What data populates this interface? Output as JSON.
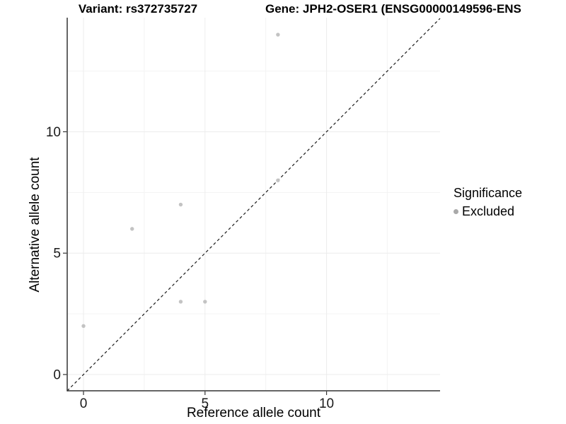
{
  "titles": {
    "variant": "Variant: rs372735727",
    "gene": "Gene: JPH2-OSER1 (ENSG00000149596-ENS"
  },
  "chart_data": {
    "type": "scatter",
    "title_left": "Variant: rs372735727",
    "title_right": "Gene: JPH2-OSER1 (ENSG00000149596-ENS",
    "xlabel": "Reference allele count",
    "ylabel": "Alternative allele count",
    "xlim": [
      -0.67,
      14.67
    ],
    "ylim": [
      -0.67,
      14.7
    ],
    "x_major_ticks": [
      0,
      5,
      10
    ],
    "y_major_ticks": [
      0,
      5,
      10
    ],
    "x_minor_ticks": [
      2.5,
      7.5,
      12.5
    ],
    "y_minor_ticks": [
      2.5,
      7.5,
      12.5
    ],
    "grid": true,
    "identity_line": {
      "type": "abline",
      "slope": 1,
      "intercept": 0,
      "style": "dashed"
    },
    "series": [
      {
        "name": "Excluded",
        "points": [
          {
            "x": 0,
            "y": 2
          },
          {
            "x": 2,
            "y": 6
          },
          {
            "x": 4,
            "y": 3
          },
          {
            "x": 4,
            "y": 7
          },
          {
            "x": 5,
            "y": 3
          },
          {
            "x": 8,
            "y": 8
          },
          {
            "x": 8,
            "y": 14
          }
        ]
      }
    ],
    "legend": {
      "position": "right",
      "title": "Significance",
      "items": [
        {
          "label": "Excluded",
          "color": "#a9a9a9"
        }
      ]
    },
    "colors": {
      "point": "#c3c3c3",
      "legend_dot": "#a9a9a9",
      "grid_major": "#ececec",
      "grid_minor": "#f3f3f3",
      "axis_line": "#333333",
      "tick": "#333333",
      "tick_label": "#1a1a1a",
      "dashed_line": "#1a1a1a"
    }
  }
}
